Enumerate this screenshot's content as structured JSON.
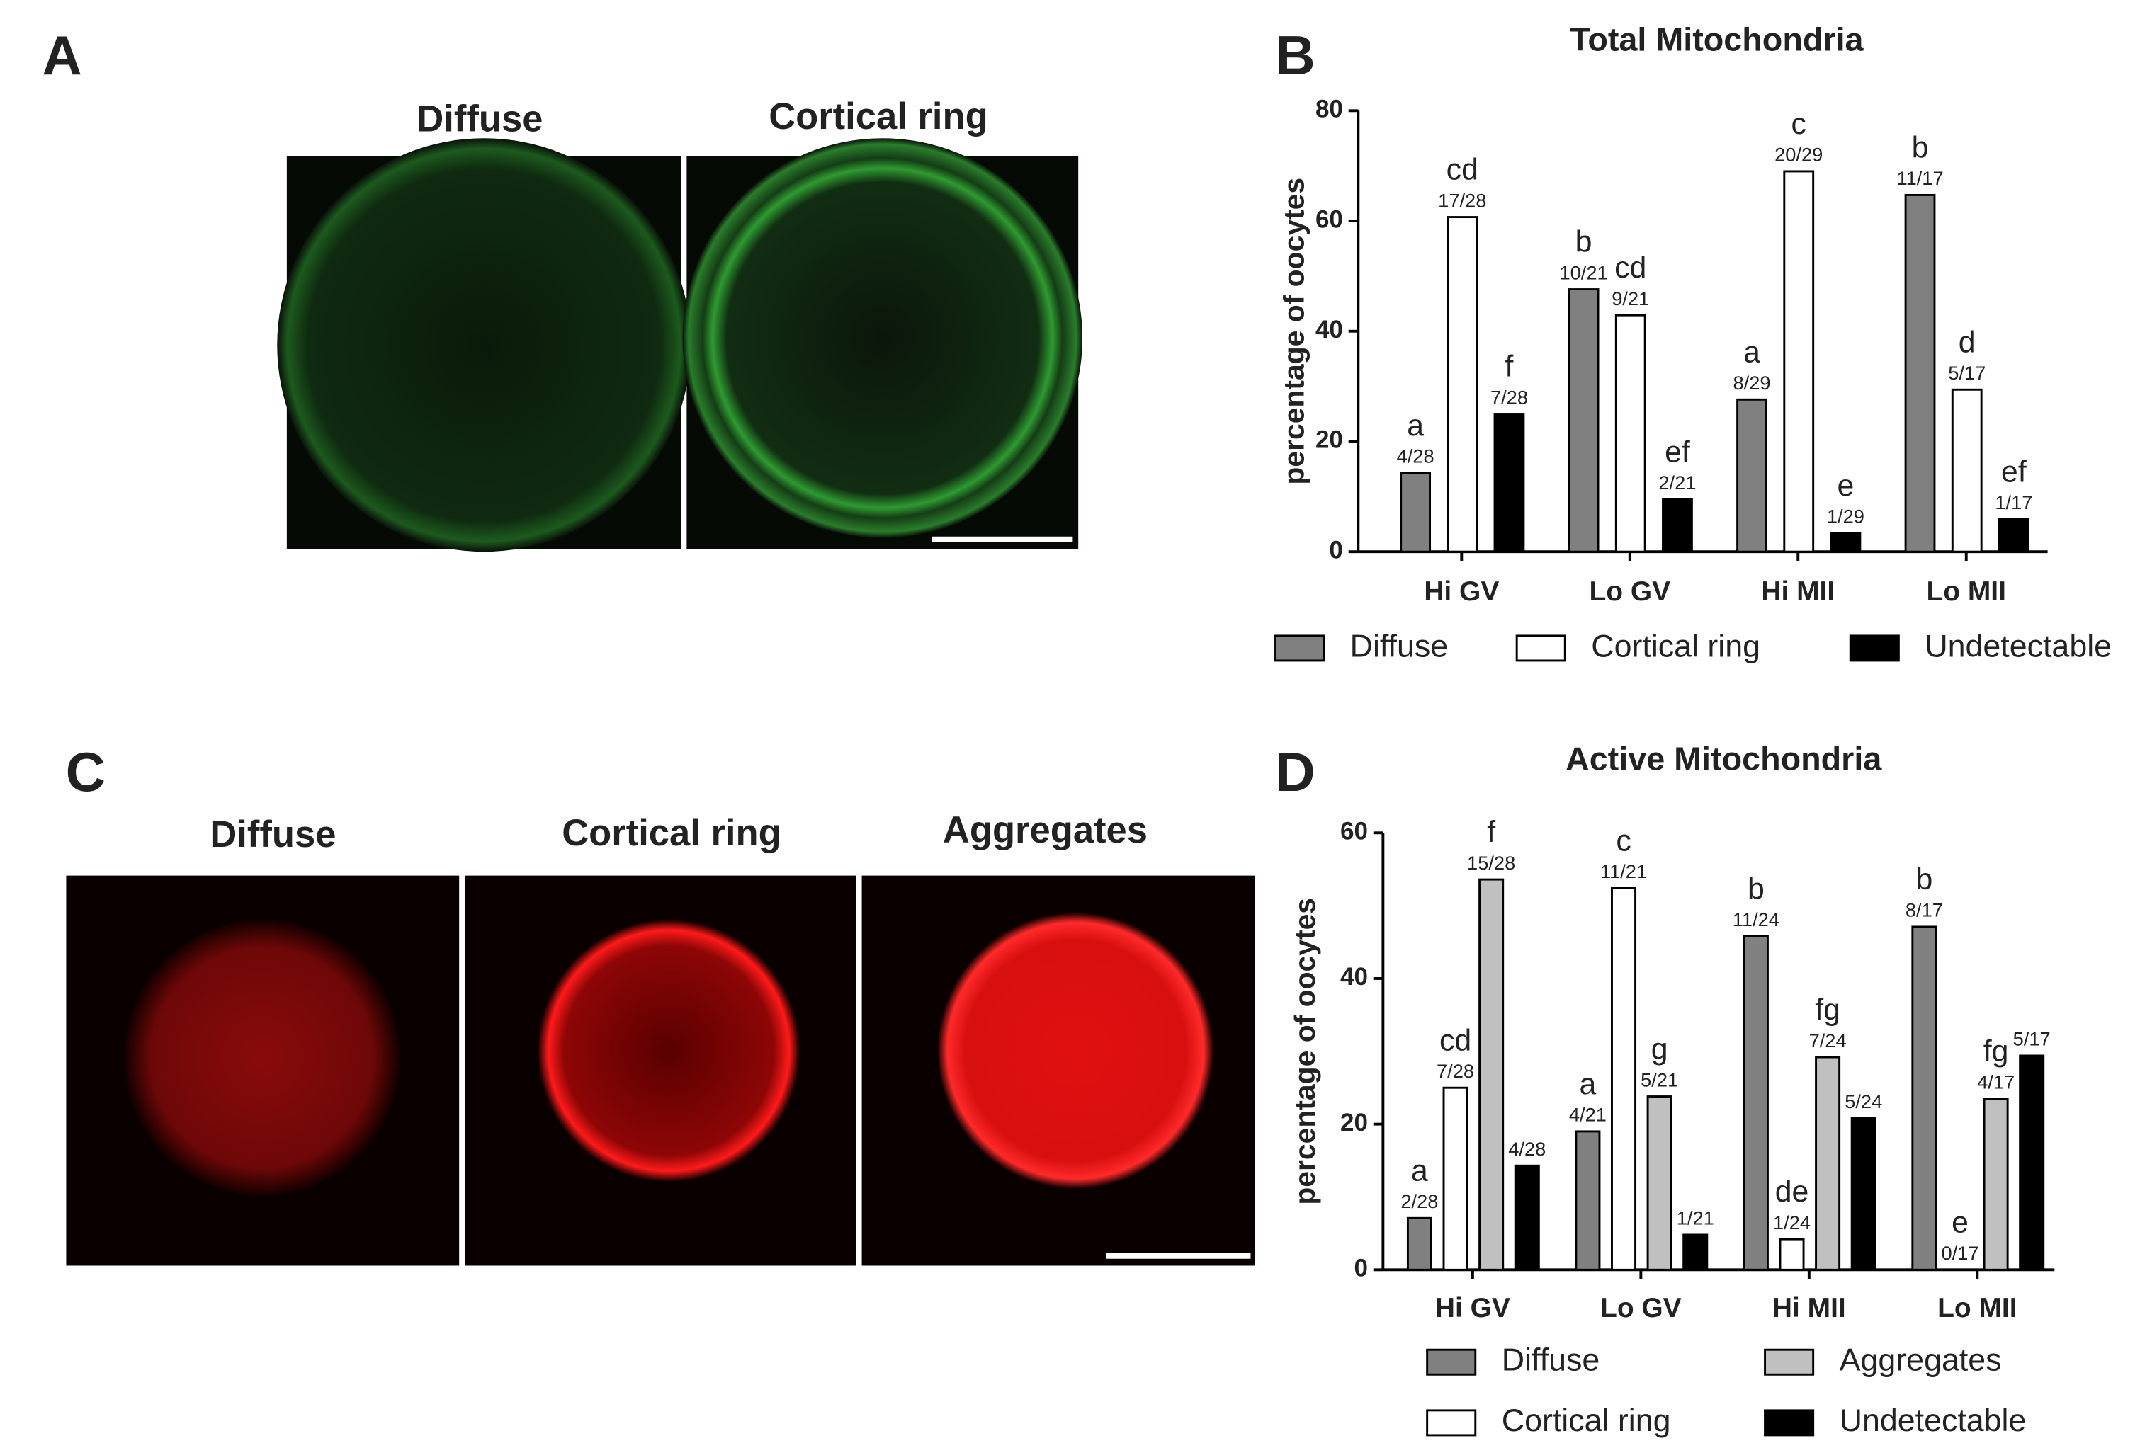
{
  "panels": [
    {
      "letter": "A",
      "captions": [
        "Diffuse",
        "Cortical ring"
      ]
    },
    {
      "letter": "C",
      "captions": [
        "Diffuse",
        "Cortical ring",
        "Aggregates"
      ]
    }
  ],
  "chart_data": [
    {
      "type": "bar",
      "panel_letter": "B",
      "title": "Total Mitochondria",
      "y_label": "percentage of oocytes",
      "categories": [
        "Hi GV",
        "Lo GV",
        "Hi MII",
        "Lo MII"
      ],
      "ylim": [
        0,
        80
      ],
      "yticks": [
        0,
        20,
        40,
        60,
        80
      ],
      "series": [
        {
          "name": "Diffuse",
          "color": "#808080",
          "values": [
            14.3,
            47.6,
            27.6,
            64.7
          ],
          "value_labels": [
            "4/28",
            "10/21",
            "8/29",
            "11/17"
          ],
          "letters": [
            "a",
            "b",
            "a",
            "b"
          ]
        },
        {
          "name": "Cortical ring",
          "color": "#ffffff",
          "values": [
            60.7,
            42.9,
            69.0,
            29.4
          ],
          "value_labels": [
            "17/28",
            "9/21",
            "20/29",
            "5/17"
          ],
          "letters": [
            "cd",
            "cd",
            "c",
            "d"
          ]
        },
        {
          "name": "Undetectable",
          "color": "#000000",
          "values": [
            25.0,
            9.5,
            3.4,
            5.9
          ],
          "value_labels": [
            "7/28",
            "2/21",
            "1/29",
            "1/17"
          ],
          "letters": [
            "f",
            "ef",
            "e",
            "ef"
          ]
        }
      ]
    },
    {
      "type": "bar",
      "panel_letter": "D",
      "title": "Active Mitochondria",
      "y_label": "percentage of oocytes",
      "categories": [
        "Hi GV",
        "Lo GV",
        "Hi MII",
        "Lo MII"
      ],
      "ylim": [
        0,
        60
      ],
      "yticks": [
        0,
        20,
        40,
        60
      ],
      "series": [
        {
          "name": "Diffuse",
          "color": "#808080",
          "values": [
            7.1,
            19.0,
            45.8,
            47.1
          ],
          "value_labels": [
            "2/28",
            "4/21",
            "11/24",
            "8/17"
          ],
          "letters": [
            "a",
            "a",
            "b",
            "b"
          ]
        },
        {
          "name": "Cortical ring",
          "color": "#ffffff",
          "values": [
            25.0,
            52.4,
            4.2,
            0
          ],
          "value_labels": [
            "7/28",
            "11/21",
            "1/24",
            "0/17"
          ],
          "letters": [
            "cd",
            "c",
            "de",
            "e"
          ]
        },
        {
          "name": "Aggregates",
          "color": "#c0c0c0",
          "values": [
            53.6,
            23.8,
            29.2,
            23.5
          ],
          "value_labels": [
            "15/28",
            "5/21",
            "7/24",
            "4/17"
          ],
          "letters": [
            "f",
            "g",
            "fg",
            "fg"
          ]
        },
        {
          "name": "Undetectable",
          "color": "#000000",
          "values": [
            14.3,
            4.8,
            20.8,
            29.4
          ],
          "value_labels": [
            "4/28",
            "1/21",
            "5/24",
            "5/17"
          ]
        }
      ]
    }
  ]
}
